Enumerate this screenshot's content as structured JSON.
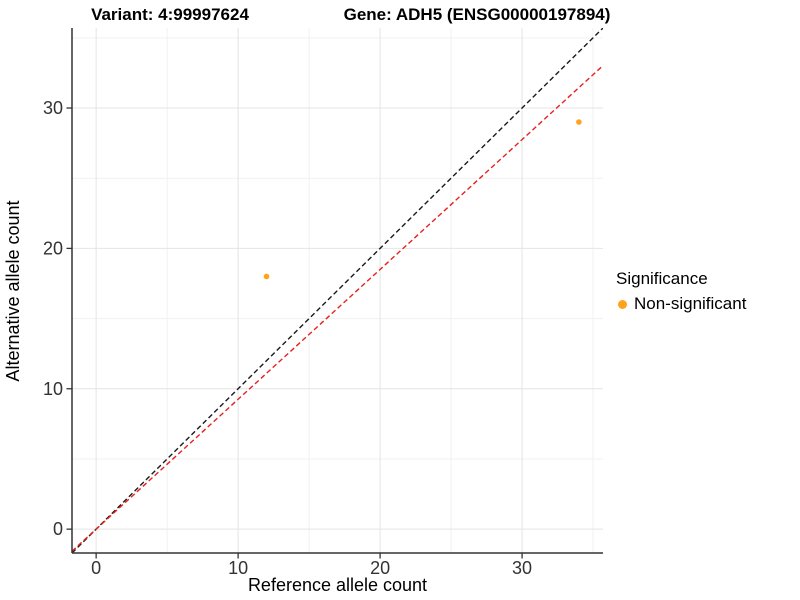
{
  "chart_data": {
    "type": "scatter",
    "titles": [
      "Variant: 4:99997624",
      "Gene: ADH5 (ENSG00000197894)"
    ],
    "xlabel": "Reference allele count",
    "ylabel": "Alternative allele count",
    "xlim": [
      -1.7,
      35.7
    ],
    "ylim": [
      -1.7,
      35.7
    ],
    "x_major_ticks": [
      0,
      10,
      20,
      30
    ],
    "x_minor_ticks": [
      5,
      15,
      25,
      35
    ],
    "y_major_ticks": [
      0,
      10,
      20,
      30
    ],
    "y_minor_ticks": [
      5,
      15,
      25,
      35
    ],
    "grid": true,
    "legend": {
      "position": "right",
      "title": "Significance",
      "items": [
        {
          "label": "Non-significant",
          "color": "#FFA31C"
        }
      ]
    },
    "series": [
      {
        "name": "Non-significant",
        "color": "#FFA31C",
        "points": [
          {
            "x": 12,
            "y": 18
          },
          {
            "x": 34,
            "y": 29
          }
        ]
      }
    ],
    "lines": [
      {
        "name": "identity",
        "slope": 1.0,
        "intercept": 0,
        "color": "#1A1A1A",
        "style": "dashed"
      },
      {
        "name": "allelic-ratio-fit",
        "slope": 0.925,
        "intercept": 0,
        "color": "#E8201E",
        "style": "dashed"
      }
    ],
    "style": {
      "major_grid_color": "#E4E4E4",
      "minor_grid_color": "#F1F1F1",
      "axis_color": "#333333",
      "tick_label_color": "#333333",
      "tick_label_size": 18
    }
  }
}
